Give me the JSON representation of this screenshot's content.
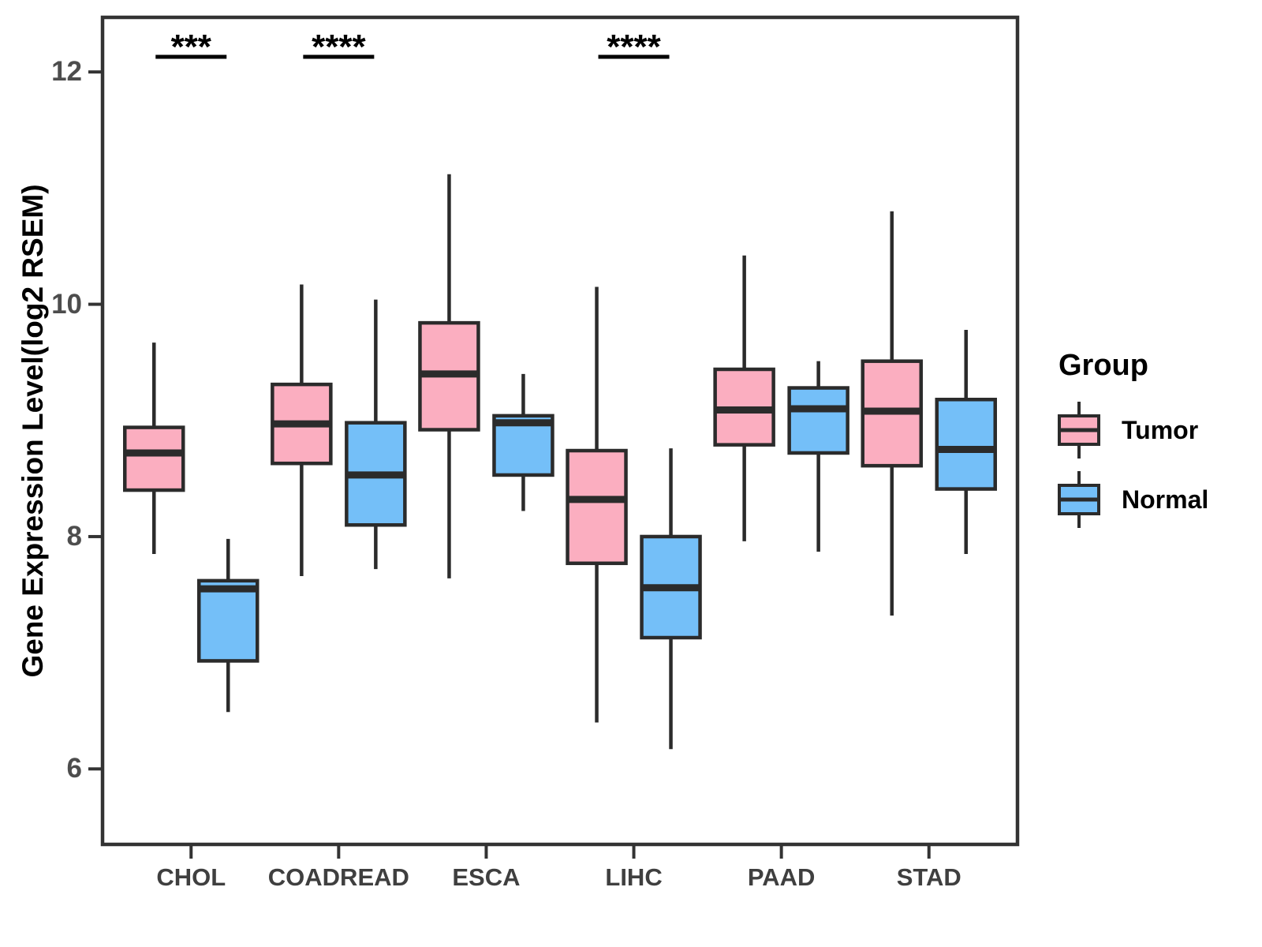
{
  "chart_data": {
    "type": "boxplot",
    "title": "",
    "xlabel": "",
    "ylabel": "Gene Expression Level(log2 RSEM)",
    "categories": [
      "CHOL",
      "COADREAD",
      "ESCA",
      "LIHC",
      "PAAD",
      "STAD"
    ],
    "ylim": [
      5.35,
      12.47
    ],
    "yticks": [
      6,
      8,
      10,
      12
    ],
    "ytick_labels": [
      "6",
      "8",
      "10",
      "12"
    ],
    "grid": false,
    "legend_position": "right",
    "series": [
      {
        "name": "Tumor",
        "color": "#FBAEC0",
        "boxes": [
          {
            "category": "CHOL",
            "whisker_low": 7.85,
            "q1": 8.4,
            "median": 8.72,
            "q3": 8.94,
            "whisker_high": 9.67
          },
          {
            "category": "COADREAD",
            "whisker_low": 7.66,
            "q1": 8.63,
            "median": 8.97,
            "q3": 9.31,
            "whisker_high": 10.17
          },
          {
            "category": "ESCA",
            "whisker_low": 7.64,
            "q1": 8.92,
            "median": 9.4,
            "q3": 9.84,
            "whisker_high": 11.12
          },
          {
            "category": "LIHC",
            "whisker_low": 6.4,
            "q1": 7.77,
            "median": 8.32,
            "q3": 8.74,
            "whisker_high": 10.15
          },
          {
            "category": "PAAD",
            "whisker_low": 7.96,
            "q1": 8.79,
            "median": 9.09,
            "q3": 9.44,
            "whisker_high": 10.42
          },
          {
            "category": "STAD",
            "whisker_low": 7.32,
            "q1": 8.61,
            "median": 9.08,
            "q3": 9.51,
            "whisker_high": 10.8
          }
        ]
      },
      {
        "name": "Normal",
        "color": "#74BFF8",
        "boxes": [
          {
            "category": "CHOL",
            "whisker_low": 6.49,
            "q1": 6.93,
            "median": 7.55,
            "q3": 7.62,
            "whisker_high": 7.98
          },
          {
            "category": "COADREAD",
            "whisker_low": 7.72,
            "q1": 8.1,
            "median": 8.53,
            "q3": 8.98,
            "whisker_high": 10.04
          },
          {
            "category": "ESCA",
            "whisker_low": 8.22,
            "q1": 8.53,
            "median": 8.98,
            "q3": 9.04,
            "whisker_high": 9.4
          },
          {
            "category": "LIHC",
            "whisker_low": 6.17,
            "q1": 7.13,
            "median": 7.56,
            "q3": 8.0,
            "whisker_high": 8.76
          },
          {
            "category": "PAAD",
            "whisker_low": 7.87,
            "q1": 8.72,
            "median": 9.1,
            "q3": 9.28,
            "whisker_high": 9.51
          },
          {
            "category": "STAD",
            "whisker_low": 7.85,
            "q1": 8.41,
            "median": 8.75,
            "q3": 9.18,
            "whisker_high": 9.78
          }
        ]
      }
    ],
    "significance": [
      {
        "category": "CHOL",
        "label": "***",
        "bar_y": 12.13
      },
      {
        "category": "COADREAD",
        "label": "****",
        "bar_y": 12.13
      },
      {
        "category": "LIHC",
        "label": "****",
        "bar_y": 12.13
      }
    ]
  },
  "legend": {
    "title": "Group",
    "items": [
      {
        "label": "Tumor"
      },
      {
        "label": "Normal"
      }
    ]
  },
  "colors": {
    "tumor_fill": "#FBAEC0",
    "normal_fill": "#74BFF8",
    "box_stroke": "#2b2b2b",
    "axis_stroke": "#333333",
    "tick_text": "#4d4d4d"
  }
}
